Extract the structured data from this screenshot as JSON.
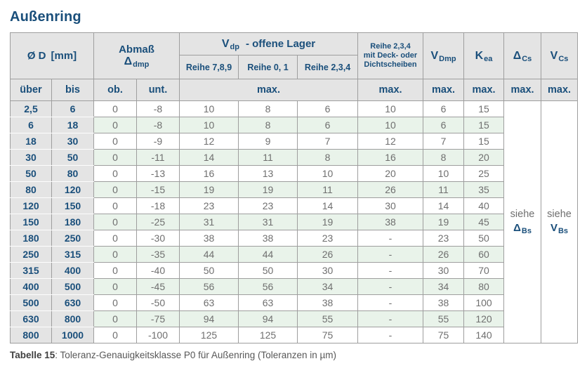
{
  "title": "Außenring",
  "header": {
    "diameter": {
      "symbol": "Ø D",
      "unit": "[mm]"
    },
    "abmass": {
      "label": "Abmaß",
      "sym": "Δ",
      "sub": "dmp"
    },
    "vdp": {
      "sym": "V",
      "sub": "dp",
      "suffix": "- offene Lager"
    },
    "reihe789": "Reihe 7,8,9",
    "reihe01": "Reihe 0, 1",
    "reihe234": "Reihe 2,3,4",
    "deck": {
      "line1": "Reihe 2,3,4",
      "line2": "mit Deck- oder",
      "line3": "Dichtscheiben"
    },
    "vdmp": {
      "sym": "V",
      "sub": "Dmp"
    },
    "kea": {
      "sym": "K",
      "sub": "ea"
    },
    "dcs": {
      "sym": "Δ",
      "sub": "Cs"
    },
    "vcs": {
      "sym": "V",
      "sub": "Cs"
    },
    "sub": {
      "ueber": "über",
      "bis": "bis",
      "ob": "ob.",
      "unt": "unt.",
      "max": "max."
    }
  },
  "notes": {
    "dbs": {
      "pre": "siehe",
      "sym": "Δ",
      "sub": "Bs"
    },
    "vbs": {
      "pre": "siehe",
      "sym": "V",
      "sub": "Bs"
    }
  },
  "rows": [
    [
      "2,5",
      "6",
      "0",
      "-8",
      "10",
      "8",
      "6",
      "10",
      "6",
      "15"
    ],
    [
      "6",
      "18",
      "0",
      "-8",
      "10",
      "8",
      "6",
      "10",
      "6",
      "15"
    ],
    [
      "18",
      "30",
      "0",
      "-9",
      "12",
      "9",
      "7",
      "12",
      "7",
      "15"
    ],
    [
      "30",
      "50",
      "0",
      "-11",
      "14",
      "11",
      "8",
      "16",
      "8",
      "20"
    ],
    [
      "50",
      "80",
      "0",
      "-13",
      "16",
      "13",
      "10",
      "20",
      "10",
      "25"
    ],
    [
      "80",
      "120",
      "0",
      "-15",
      "19",
      "19",
      "11",
      "26",
      "11",
      "35"
    ],
    [
      "120",
      "150",
      "0",
      "-18",
      "23",
      "23",
      "14",
      "30",
      "14",
      "40"
    ],
    [
      "150",
      "180",
      "0",
      "-25",
      "31",
      "31",
      "19",
      "38",
      "19",
      "45"
    ],
    [
      "180",
      "250",
      "0",
      "-30",
      "38",
      "38",
      "23",
      "-",
      "23",
      "50"
    ],
    [
      "250",
      "315",
      "0",
      "-35",
      "44",
      "44",
      "26",
      "-",
      "26",
      "60"
    ],
    [
      "315",
      "400",
      "0",
      "-40",
      "50",
      "50",
      "30",
      "-",
      "30",
      "70"
    ],
    [
      "400",
      "500",
      "0",
      "-45",
      "56",
      "56",
      "34",
      "-",
      "34",
      "80"
    ],
    [
      "500",
      "630",
      "0",
      "-50",
      "63",
      "63",
      "38",
      "-",
      "38",
      "100"
    ],
    [
      "630",
      "800",
      "0",
      "-75",
      "94",
      "94",
      "55",
      "-",
      "55",
      "120"
    ],
    [
      "800",
      "1000",
      "0",
      "-100",
      "125",
      "125",
      "75",
      "-",
      "75",
      "140"
    ]
  ],
  "caption": {
    "bold": "Tabelle 15",
    "rest": ": Toleranz-Genauigkeitsklasse P0 für Außenring (Toleranzen in µm)"
  },
  "colors": {
    "accent_blue": "#1a4f7b",
    "header_gray": "#e4e4e4",
    "stripe_green": "#e9f3ea",
    "value_gray": "#6f6f6f",
    "border_gray": "#9e9e9e"
  }
}
